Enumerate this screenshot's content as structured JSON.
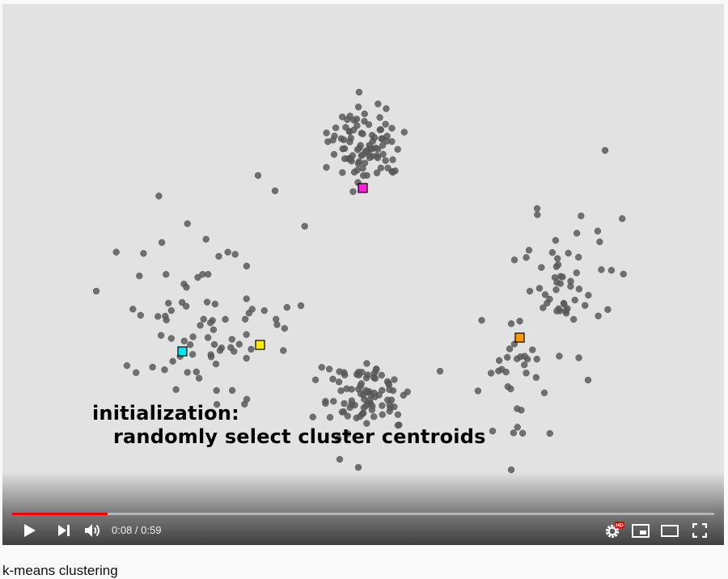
{
  "video": {
    "caption_line1": "initialization:",
    "caption_line2": "randomly select cluster centroids",
    "centroids": [
      {
        "name": "magenta",
        "color": "#ff22dd"
      },
      {
        "name": "cyan",
        "color": "#00e5ee"
      },
      {
        "name": "yellow",
        "color": "#ffea00"
      },
      {
        "name": "orange",
        "color": "#ff9900"
      }
    ],
    "point_color": "#5a5a5a"
  },
  "player": {
    "progress": 0.136,
    "current_time": "0:08",
    "duration": "0:59",
    "time_separator": " / ",
    "progress_color": "#ff0000",
    "hd_badge": "HD",
    "icons": {
      "play": "play-icon",
      "next": "next-icon",
      "volume": "volume-icon",
      "settings": "settings-gear-icon",
      "miniplayer": "miniplayer-icon",
      "theater": "theater-mode-icon",
      "fullscreen": "fullscreen-icon"
    }
  },
  "title": "k-means clustering"
}
